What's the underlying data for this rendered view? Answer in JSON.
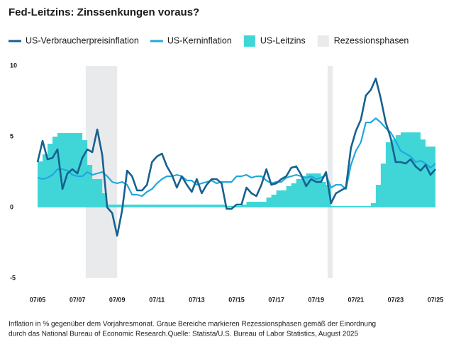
{
  "chart_data": {
    "type": "line",
    "title": "Fed-Leitzins: Zinssenkungen voraus?",
    "note": [
      "Inflation in % gegenüber dem Vorjahresmonat. Graue Bereiche markieren Rezessionsphasen gemäß der Einordnung",
      "durch das National Bureau of Economic Research.Quelle: Statista/U.S. Bureau of Labor Statistics, August 2025"
    ],
    "x": [
      2005.5,
      2005.75,
      2006,
      2006.25,
      2006.5,
      2006.75,
      2007,
      2007.25,
      2007.5,
      2007.75,
      2008,
      2008.25,
      2008.5,
      2008.75,
      2009,
      2009.25,
      2009.5,
      2009.75,
      2010,
      2010.25,
      2010.5,
      2010.75,
      2011,
      2011.25,
      2011.5,
      2011.75,
      2012,
      2012.25,
      2012.5,
      2012.75,
      2013,
      2013.25,
      2013.5,
      2013.75,
      2014,
      2014.25,
      2014.5,
      2014.75,
      2015,
      2015.25,
      2015.5,
      2015.75,
      2016,
      2016.25,
      2016.5,
      2016.75,
      2017,
      2017.25,
      2017.5,
      2017.75,
      2018,
      2018.25,
      2018.5,
      2018.75,
      2019,
      2019.25,
      2019.5,
      2019.75,
      2020,
      2020.25,
      2020.5,
      2020.75,
      2021,
      2021.25,
      2021.5,
      2021.75,
      2022,
      2022.25,
      2022.5,
      2022.75,
      2023,
      2023.25,
      2023.5,
      2023.75,
      2024,
      2024.25,
      2024.5,
      2024.75,
      2025,
      2025.25,
      2025.5
    ],
    "series": [
      {
        "name": "US-Verbraucherpreisinflation",
        "color": "#17618f",
        "style": "line",
        "width": 2.6,
        "values": [
          3.2,
          4.7,
          3.4,
          3.5,
          4.1,
          1.3,
          2.4,
          2.7,
          2.4,
          3.5,
          4.1,
          3.9,
          5.5,
          3.7,
          0.0,
          -0.4,
          -2.0,
          -0.2,
          2.6,
          2.2,
          1.2,
          1.2,
          1.6,
          3.2,
          3.6,
          3.8,
          2.9,
          2.3,
          1.4,
          2.2,
          1.6,
          1.1,
          2.0,
          1.0,
          1.6,
          2.0,
          2.0,
          1.7,
          -0.1,
          -0.1,
          0.2,
          0.2,
          1.4,
          1.0,
          0.8,
          1.6,
          2.7,
          1.6,
          1.7,
          2.0,
          2.2,
          2.8,
          2.9,
          2.3,
          1.5,
          2.0,
          1.8,
          1.8,
          2.5,
          0.3,
          1.0,
          1.2,
          1.4,
          4.2,
          5.4,
          6.2,
          7.9,
          8.3,
          9.1,
          7.7,
          6.0,
          4.9,
          3.2,
          3.2,
          3.1,
          3.4,
          2.9,
          2.6,
          3.0,
          2.3,
          2.7
        ]
      },
      {
        "name": "US-Kerninflation",
        "color": "#1fa8e0",
        "style": "line",
        "width": 2.2,
        "values": [
          2.1,
          2.0,
          2.1,
          2.3,
          2.7,
          2.7,
          2.6,
          2.3,
          2.2,
          2.2,
          2.5,
          2.3,
          2.4,
          2.5,
          2.2,
          1.8,
          1.7,
          1.8,
          1.6,
          0.9,
          0.9,
          0.8,
          1.1,
          1.3,
          1.7,
          2.0,
          2.2,
          2.2,
          2.3,
          2.2,
          1.9,
          1.9,
          1.6,
          1.7,
          1.8,
          1.9,
          1.7,
          1.8,
          1.8,
          1.8,
          2.2,
          2.2,
          2.3,
          2.1,
          2.2,
          2.2,
          1.9,
          1.7,
          1.8,
          1.8,
          2.1,
          2.2,
          2.3,
          2.2,
          2.1,
          2.2,
          2.0,
          2.1,
          2.3,
          1.4,
          1.6,
          1.6,
          1.3,
          3.0,
          4.0,
          4.6,
          6.0,
          6.0,
          6.3,
          6.0,
          5.6,
          5.3,
          4.7,
          4.0,
          3.8,
          3.6,
          3.2,
          3.3,
          3.1,
          2.8,
          3.1
        ]
      },
      {
        "name": "US-Leitzins",
        "color": "#40d6d8",
        "style": "step-area",
        "values": [
          3.25,
          3.75,
          4.5,
          5.0,
          5.25,
          5.25,
          5.25,
          5.25,
          5.25,
          4.75,
          3.0,
          2.0,
          2.0,
          1.0,
          0.2,
          0.2,
          0.2,
          0.2,
          0.2,
          0.2,
          0.2,
          0.2,
          0.2,
          0.2,
          0.2,
          0.2,
          0.2,
          0.2,
          0.2,
          0.2,
          0.2,
          0.2,
          0.2,
          0.2,
          0.2,
          0.2,
          0.2,
          0.2,
          0.1,
          0.1,
          0.1,
          0.2,
          0.4,
          0.4,
          0.4,
          0.4,
          0.7,
          0.9,
          1.2,
          1.2,
          1.5,
          1.7,
          2.0,
          2.2,
          2.4,
          2.4,
          2.4,
          1.8,
          1.6,
          0.1,
          0.1,
          0.1,
          0.1,
          0.1,
          0.1,
          0.1,
          0.1,
          0.3,
          1.6,
          3.1,
          4.6,
          4.8,
          5.1,
          5.3,
          5.3,
          5.3,
          5.3,
          4.8,
          4.3,
          4.3,
          4.3
        ]
      }
    ],
    "recession": {
      "name": "Rezessionsphasen",
      "color": "#e9eaec",
      "periods": [
        [
          2007.92,
          2009.5
        ],
        [
          2020.08,
          2020.33
        ]
      ]
    },
    "xlim": [
      2005.5,
      2025.5
    ],
    "xticks": [
      {
        "value": 2005.5,
        "label": "07/05"
      },
      {
        "value": 2007.5,
        "label": "07/07"
      },
      {
        "value": 2009.5,
        "label": "07/09"
      },
      {
        "value": 2011.5,
        "label": "07/11"
      },
      {
        "value": 2013.5,
        "label": "07/13"
      },
      {
        "value": 2015.5,
        "label": "07/15"
      },
      {
        "value": 2017.5,
        "label": "07/17"
      },
      {
        "value": 2019.5,
        "label": "07/19"
      },
      {
        "value": 2021.5,
        "label": "07/21"
      },
      {
        "value": 2023.5,
        "label": "07/23"
      },
      {
        "value": 2025.5,
        "label": "07/25"
      }
    ],
    "ylim": [
      -5,
      10
    ],
    "yticks": [
      -5,
      0,
      5,
      10
    ],
    "grid": false
  }
}
